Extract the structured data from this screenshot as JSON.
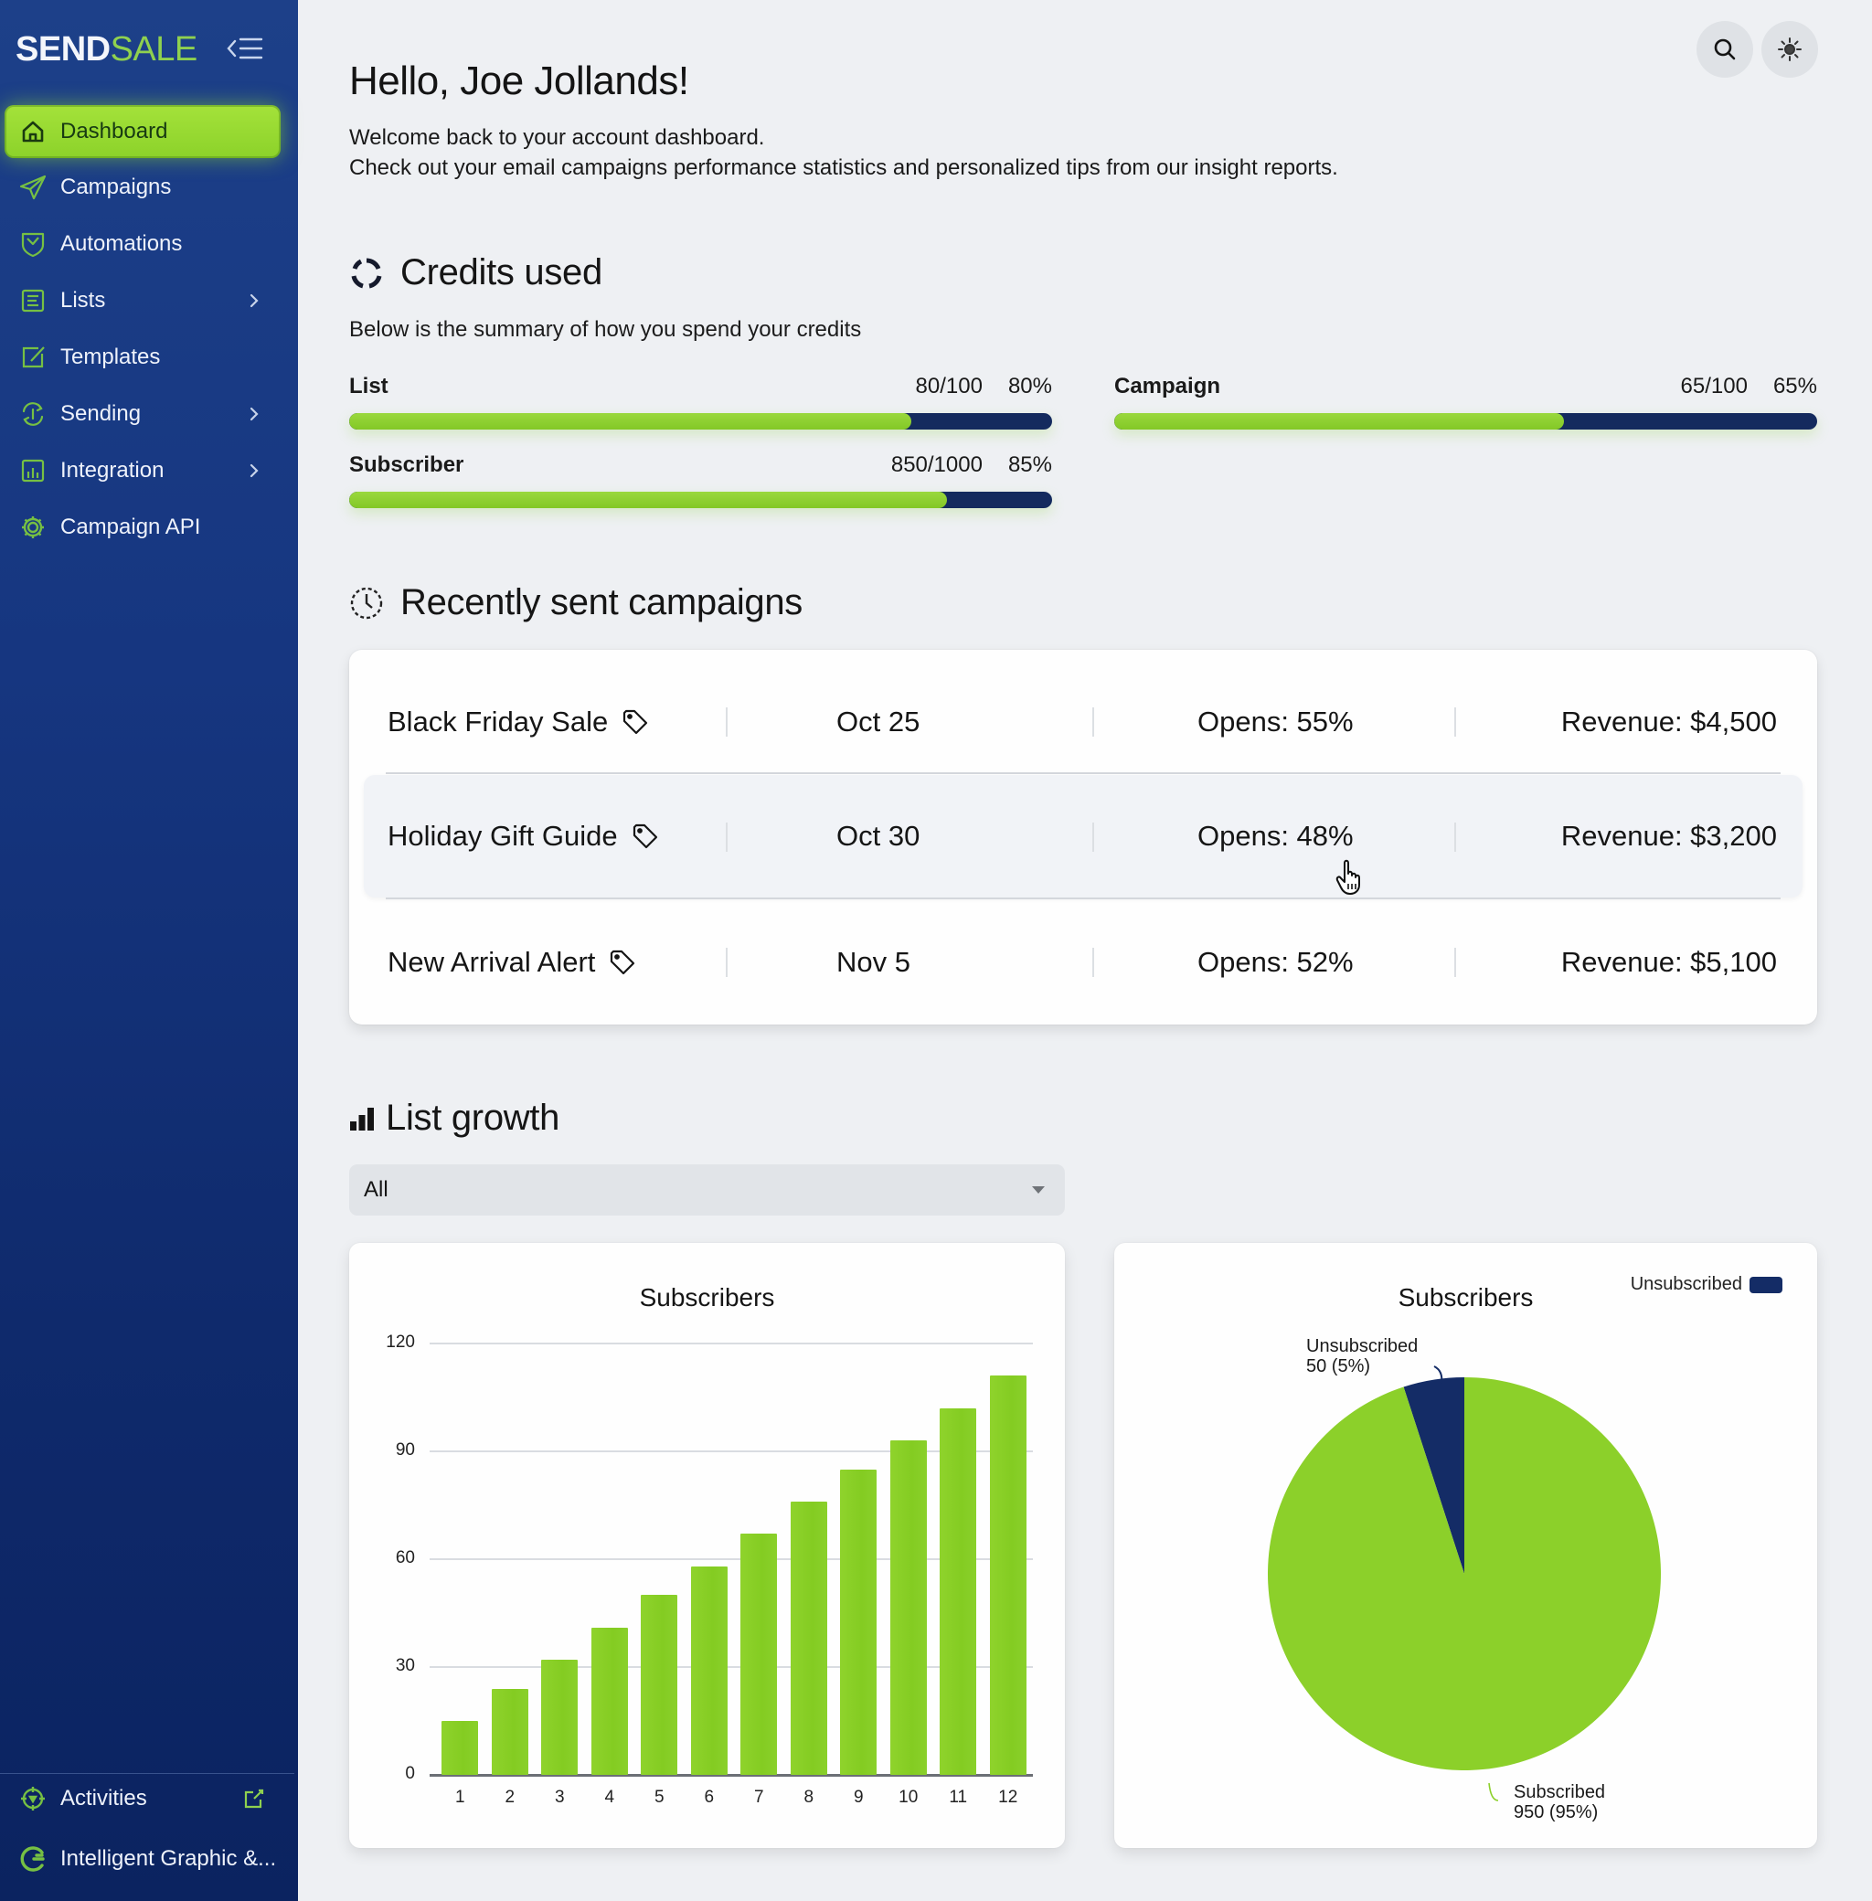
{
  "sidebar": {
    "logo": {
      "part1": "SEND",
      "part2": "SALE"
    },
    "items": [
      {
        "label": "Dashboard",
        "icon": "home-icon",
        "active": true
      },
      {
        "label": "Campaigns",
        "icon": "paper-plane-icon"
      },
      {
        "label": "Automations",
        "icon": "shield-clock-icon"
      },
      {
        "label": "Lists",
        "icon": "list-icon",
        "has_submenu": true
      },
      {
        "label": "Templates",
        "icon": "edit-icon"
      },
      {
        "label": "Sending",
        "icon": "sync-icon",
        "has_submenu": true
      },
      {
        "label": "Integration",
        "icon": "chart-box-icon",
        "has_submenu": true
      },
      {
        "label": "Campaign API",
        "icon": "gear-icon"
      }
    ],
    "bottom_items": [
      {
        "label": "Activities",
        "icon": "crosshair-icon",
        "external": true
      },
      {
        "label": "Intelligent Graphic &...",
        "icon": "brand-g-icon"
      }
    ]
  },
  "topbar": {
    "search_icon": "search-icon",
    "theme_icon": "sun-icon"
  },
  "header": {
    "greeting": "Hello, Joe Jollands!",
    "welcome_line1": "Welcome back to your account dashboard.",
    "welcome_line2": "Check out your email campaigns performance statistics and personalized tips from our insight reports."
  },
  "credits": {
    "title": "Credits used",
    "subtitle": "Below is the summary of how you spend your credits",
    "items": [
      {
        "label": "List",
        "used": "80/100",
        "percent": "80%",
        "value": 80
      },
      {
        "label": "Campaign",
        "used": "65/100",
        "percent": "65%",
        "value": 65
      },
      {
        "label": "Subscriber",
        "used": "850/1000",
        "percent": "85%",
        "value": 85
      }
    ]
  },
  "recent": {
    "title": "Recently sent campaigns",
    "rows": [
      {
        "name": "Black Friday Sale",
        "date": "Oct 25",
        "opens": "Opens: 55%",
        "revenue": "Revenue: $4,500"
      },
      {
        "name": "Holiday Gift Guide",
        "date": "Oct 30",
        "opens": "Opens: 48%",
        "revenue": "Revenue: $3,200"
      },
      {
        "name": "New Arrival Alert",
        "date": "Nov 5",
        "opens": "Opens: 52%",
        "revenue": "Revenue: $5,100"
      }
    ]
  },
  "list_growth": {
    "title": "List growth",
    "filter": {
      "selected": "All"
    }
  },
  "colors": {
    "accent_green": "#8cd02a",
    "navy": "#142c66",
    "sidebar_top": "#1d4089",
    "sidebar_bottom": "#0b2360"
  },
  "chart_data": [
    {
      "type": "bar",
      "title": "Subscribers",
      "categories": [
        "1",
        "2",
        "3",
        "4",
        "5",
        "6",
        "7",
        "8",
        "9",
        "10",
        "11",
        "12"
      ],
      "values": [
        15,
        24,
        32,
        41,
        50,
        58,
        67,
        76,
        85,
        93,
        102,
        111
      ],
      "yticks": [
        "0",
        "30",
        "60",
        "90",
        "120"
      ],
      "ylim": [
        0,
        120
      ],
      "xlabel": "",
      "ylabel": "",
      "grid": true
    },
    {
      "type": "pie",
      "title": "Subscribers",
      "legend": [
        {
          "label": "Unsubscribed",
          "color": "#142c66"
        }
      ],
      "legend_position": "top-right",
      "slices": [
        {
          "label": "Unsubscribed",
          "value": 50,
          "percent": 5,
          "text": "Unsubscribed",
          "detail": "50 (5%)",
          "color": "#142c66"
        },
        {
          "label": "Subscribed",
          "value": 950,
          "percent": 95,
          "text": "Subscribed",
          "detail": "950 (95%)",
          "color": "#8cd02a"
        }
      ]
    }
  ]
}
